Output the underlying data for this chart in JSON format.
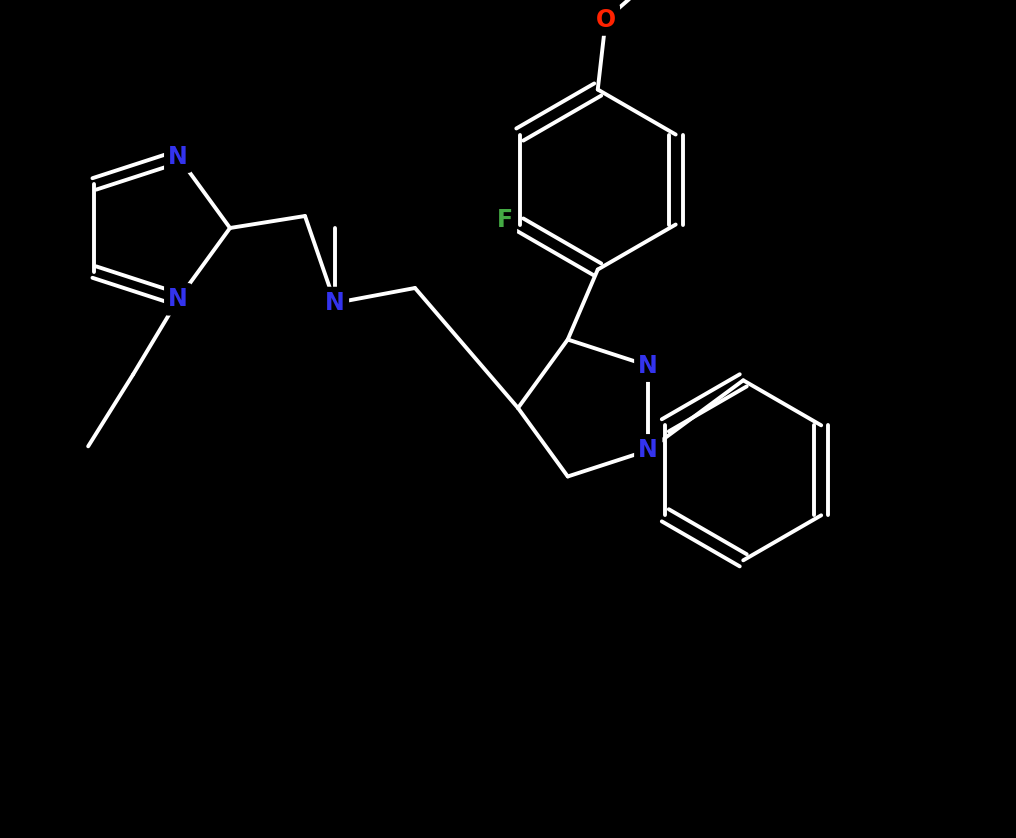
{
  "bg_color": "#000000",
  "bond_color": "#ffffff",
  "bond_width": 2.8,
  "atom_colors": {
    "N": "#3333ee",
    "O": "#ff2200",
    "F": "#44aa44",
    "C": "#ffffff"
  },
  "font_size": 17,
  "fig_width": 10.16,
  "fig_height": 8.38,
  "dpi": 100,
  "xlim": [
    0,
    1016
  ],
  "ylim": [
    0,
    838
  ]
}
